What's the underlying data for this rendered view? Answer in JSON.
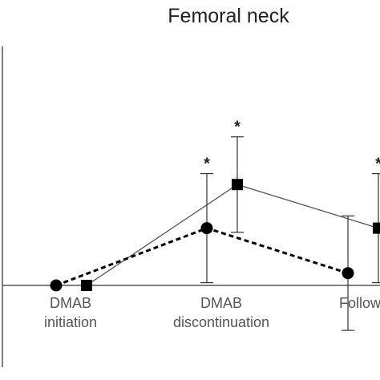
{
  "chart_data": {
    "type": "line",
    "title": "Femoral neck",
    "categories": [
      "DMAB\ninitiation",
      "DMAB\ndiscontinuation",
      "Follow-"
    ],
    "series": [
      {
        "marker": "square",
        "line": "solid",
        "values": [
          0,
          3.7,
          2.1
        ],
        "error": [
          null,
          1.75,
          2.0
        ],
        "significance": [
          null,
          "*",
          "*"
        ]
      },
      {
        "marker": "circle",
        "line": "dashed",
        "values": [
          0,
          2.1,
          0.45
        ],
        "error": [
          null,
          2.0,
          2.1
        ],
        "significance": [
          null,
          "*",
          null
        ]
      }
    ],
    "ylim": [
      -1.8,
      9.2
    ],
    "grid": false,
    "legend": "none",
    "colors": {
      "line": "#555555",
      "marker": "#000000",
      "axis": "#555555"
    }
  }
}
